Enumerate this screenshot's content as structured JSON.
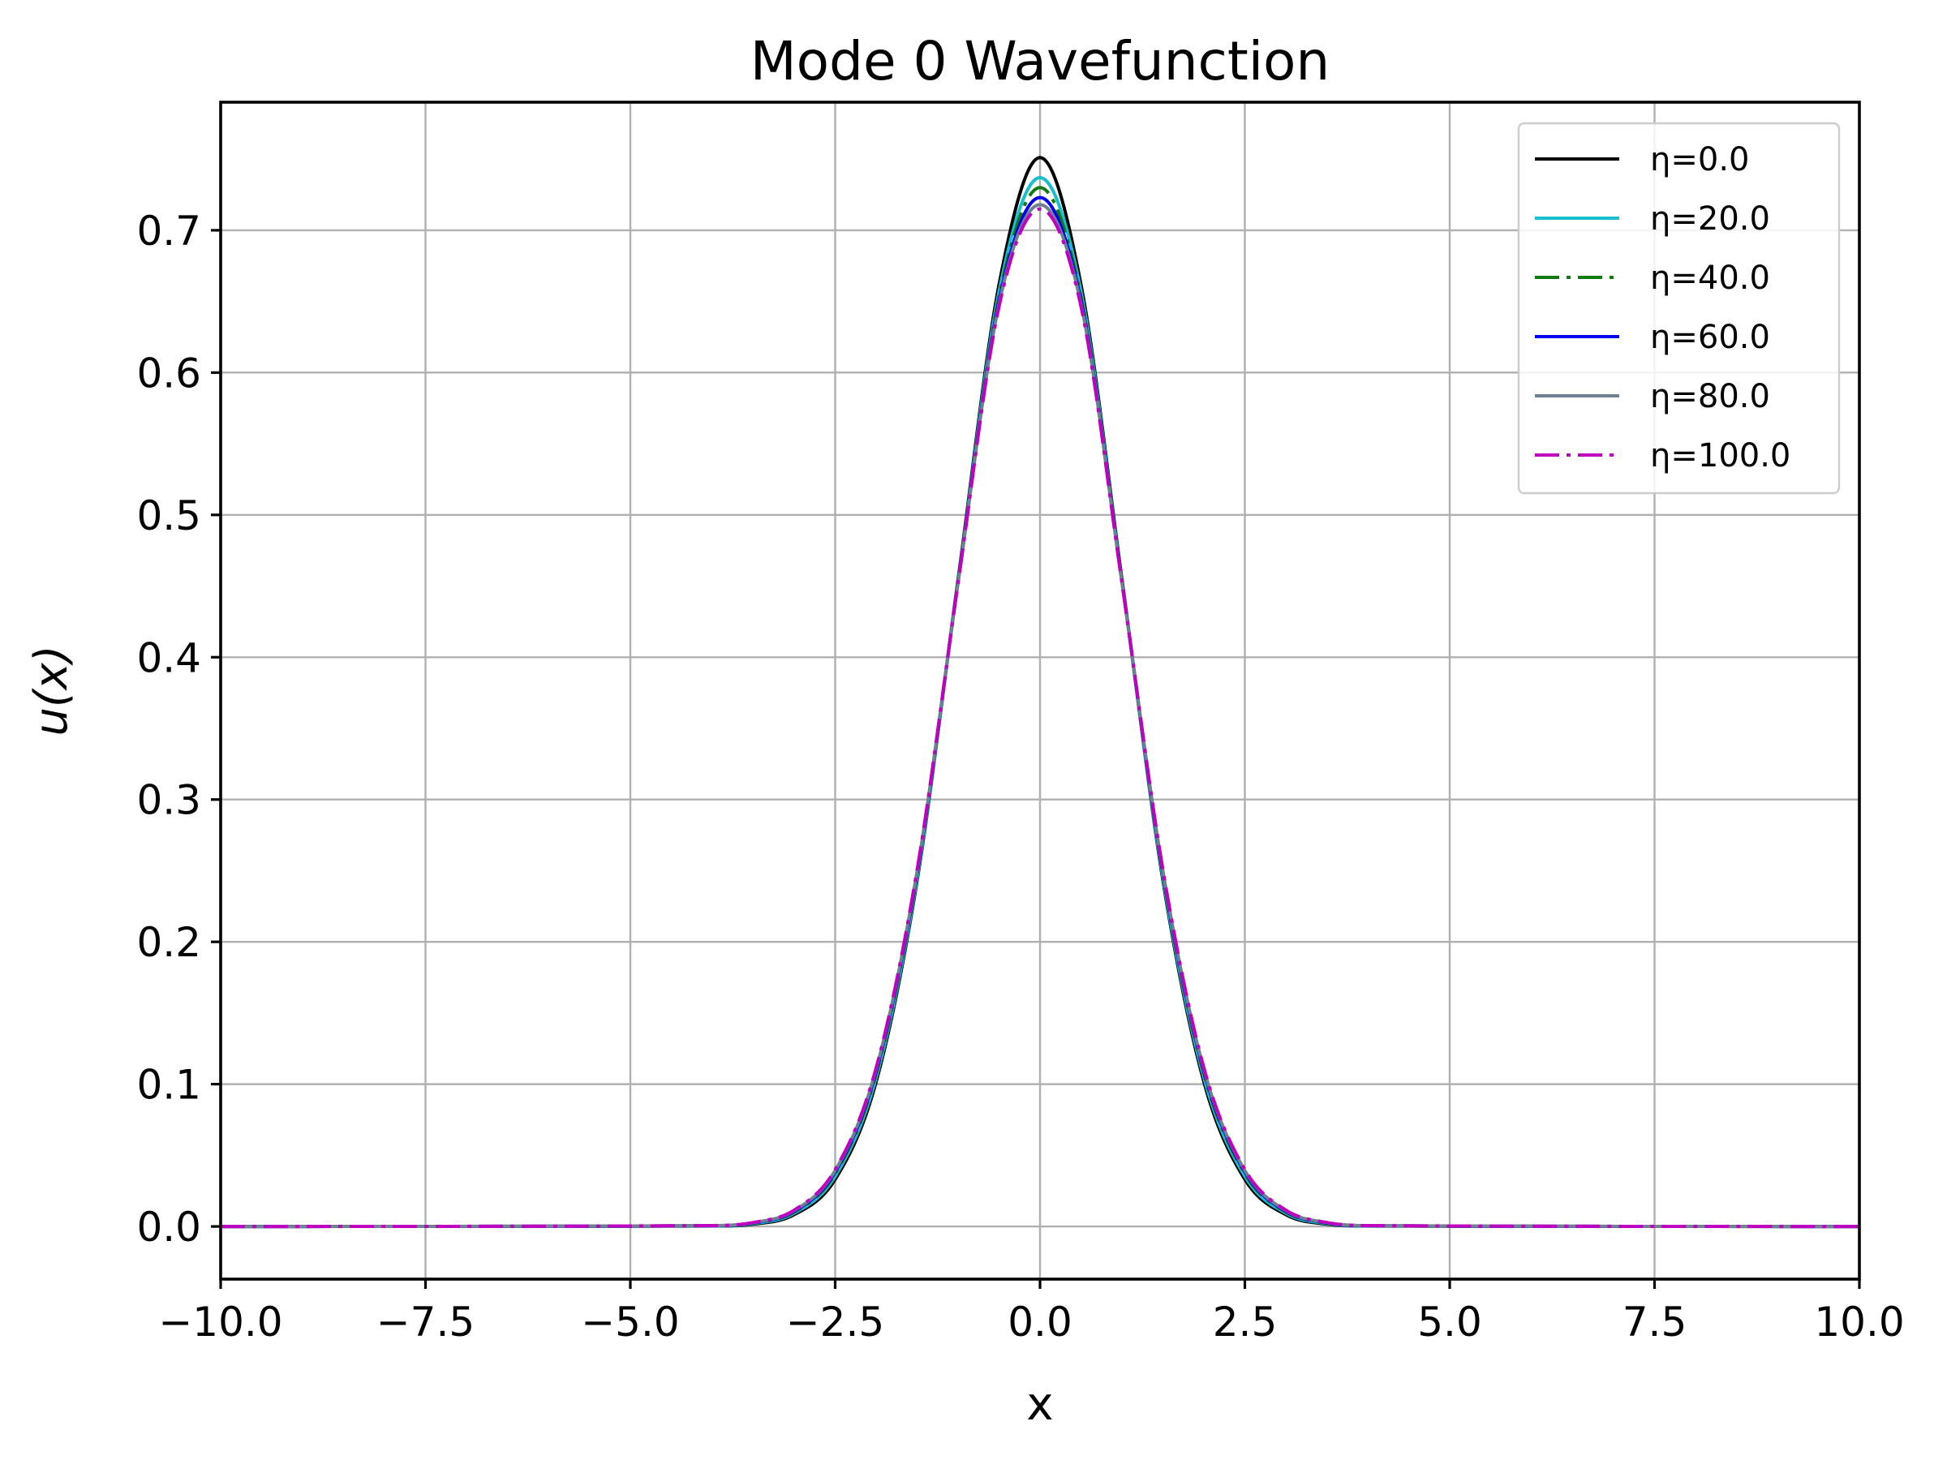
{
  "chart_data": {
    "type": "line",
    "title": "Mode 0 Wavefunction",
    "xlabel": "x",
    "ylabel": "u(x)",
    "xlim": [
      -10,
      10
    ],
    "ylim": [
      -0.037,
      0.79
    ],
    "grid": true,
    "legend_position": "top-right",
    "x_ticks": [
      -10.0,
      -7.5,
      -5.0,
      -2.5,
      0.0,
      2.5,
      5.0,
      7.5,
      10.0
    ],
    "x_tick_labels": [
      "−10.0",
      "−7.5",
      "−5.0",
      "−2.5",
      "0.0",
      "2.5",
      "5.0",
      "7.5",
      "10.0"
    ],
    "y_ticks": [
      0.0,
      0.1,
      0.2,
      0.3,
      0.4,
      0.5,
      0.6,
      0.7
    ],
    "y_tick_labels": [
      "0.0",
      "0.1",
      "0.2",
      "0.3",
      "0.4",
      "0.5",
      "0.6",
      "0.7"
    ],
    "x": [
      -10,
      -4,
      -3.5,
      -3,
      -2.5,
      -2,
      -1.5,
      -1,
      -0.5,
      0,
      0.5,
      1,
      1.5,
      2,
      2.5,
      3,
      3.5,
      4,
      10
    ],
    "series": [
      {
        "name": "η=0.0",
        "color": "#000000",
        "dash": "solid",
        "values": [
          0.0,
          0.0003,
          0.0016,
          0.0083,
          0.0331,
          0.1016,
          0.243,
          0.4549,
          0.6619,
          0.7511,
          0.6619,
          0.4549,
          0.243,
          0.1016,
          0.0331,
          0.0083,
          0.0016,
          0.0003,
          0.0
        ]
      },
      {
        "name": "η=20.0",
        "color": "#17becf",
        "dash": "solid",
        "values": [
          0.0,
          0.0004,
          0.002,
          0.0093,
          0.0353,
          0.1045,
          0.2448,
          0.4532,
          0.657,
          0.737,
          0.657,
          0.4532,
          0.2448,
          0.1045,
          0.0353,
          0.0093,
          0.002,
          0.0004,
          0.0
        ]
      },
      {
        "name": "η=40.0",
        "color": "#117a11",
        "dash": "dashdot",
        "values": [
          0.0,
          0.0005,
          0.0023,
          0.0101,
          0.0372,
          0.1073,
          0.247,
          0.453,
          0.653,
          0.73,
          0.653,
          0.453,
          0.247,
          0.1073,
          0.0372,
          0.0101,
          0.0023,
          0.0005,
          0.0
        ]
      },
      {
        "name": "η=60.0",
        "color": "#0000ee",
        "dash": "solid",
        "values": [
          0.0,
          0.0005,
          0.0025,
          0.0106,
          0.0383,
          0.109,
          0.2485,
          0.4527,
          0.6505,
          0.723,
          0.6505,
          0.4527,
          0.2485,
          0.109,
          0.0383,
          0.0106,
          0.0025,
          0.0005,
          0.0
        ]
      },
      {
        "name": "η=80.0",
        "color": "#708090",
        "dash": "solid",
        "values": [
          0.0,
          0.0006,
          0.0027,
          0.0111,
          0.0393,
          0.1105,
          0.2498,
          0.4524,
          0.6482,
          0.718,
          0.6482,
          0.4524,
          0.2498,
          0.1105,
          0.0393,
          0.0111,
          0.0027,
          0.0006,
          0.0
        ]
      },
      {
        "name": "η=100.0",
        "color": "#c000c0",
        "dash": "dashdot",
        "values": [
          0.0,
          0.0006,
          0.0028,
          0.0115,
          0.04,
          0.1115,
          0.2507,
          0.4522,
          0.6465,
          0.715,
          0.6465,
          0.4522,
          0.2507,
          0.1115,
          0.04,
          0.0115,
          0.0028,
          0.0006,
          0.0
        ]
      }
    ]
  }
}
